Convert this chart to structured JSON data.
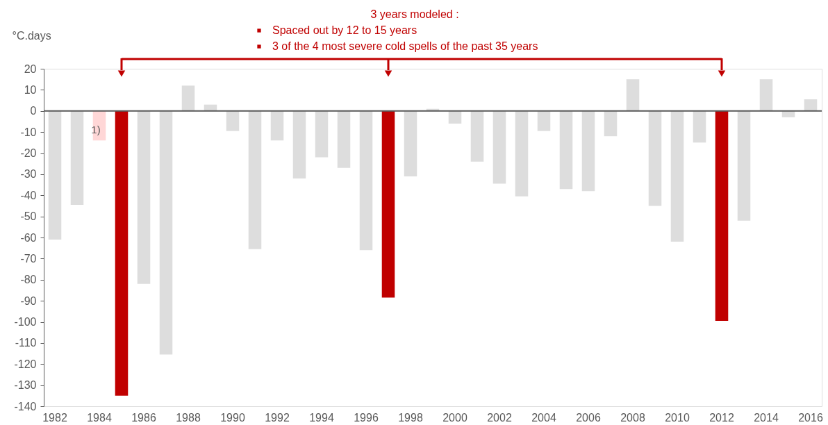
{
  "chart_data": {
    "type": "bar",
    "ylabel": "°C.days",
    "annotations": [
      "3 years modeled :",
      "Spaced out by 12 to 15 years",
      "3 of the 4 most severe cold spells of the past 35 years",
      "1)"
    ],
    "categories": [
      "1982",
      null,
      "1984",
      null,
      "1986",
      null,
      "1988",
      null,
      "1990",
      null,
      "1992",
      null,
      "1994",
      null,
      "1996",
      null,
      "1998",
      null,
      "2000",
      null,
      "2002",
      null,
      "2004",
      null,
      "2006",
      null,
      "2008",
      null,
      "2010",
      null,
      "2012",
      null,
      "2014",
      null,
      "2016"
    ],
    "values": [
      -61,
      -44.5,
      -14,
      -135,
      -82,
      -115.5,
      12,
      3,
      -9.5,
      -65.5,
      -14,
      -32,
      -22,
      -27,
      -66,
      -88.5,
      -31,
      1,
      -6,
      -24,
      -34.5,
      -40.5,
      -9.5,
      -37,
      -38,
      -12,
      15,
      -45,
      -62,
      -15,
      -99.5,
      -52,
      15,
      -3,
      5.5
    ],
    "colors": [
      "#dddddd",
      "#dddddd",
      "#ffd7d7",
      "#c00000",
      "#dddddd",
      "#dddddd",
      "#dddddd",
      "#dddddd",
      "#dddddd",
      "#dddddd",
      "#dddddd",
      "#dddddd",
      "#dddddd",
      "#dddddd",
      "#dddddd",
      "#c00000",
      "#dddddd",
      "#dddddd",
      "#dddddd",
      "#dddddd",
      "#dddddd",
      "#dddddd",
      "#dddddd",
      "#dddddd",
      "#dddddd",
      "#dddddd",
      "#dddddd",
      "#dddddd",
      "#dddddd",
      "#dddddd",
      "#c00000",
      "#dddddd",
      "#dddddd",
      "#dddddd",
      "#dddddd"
    ],
    "ylim": [
      -140,
      20
    ],
    "yticks": [
      -140,
      -130,
      -120,
      -110,
      -100,
      -90,
      -80,
      -70,
      -60,
      -50,
      -40,
      -30,
      -20,
      -10,
      0,
      10,
      20
    ],
    "ref_lines": [
      {
        "axis": "y",
        "value": 0,
        "color": "#595959"
      }
    ],
    "grid": false
  }
}
